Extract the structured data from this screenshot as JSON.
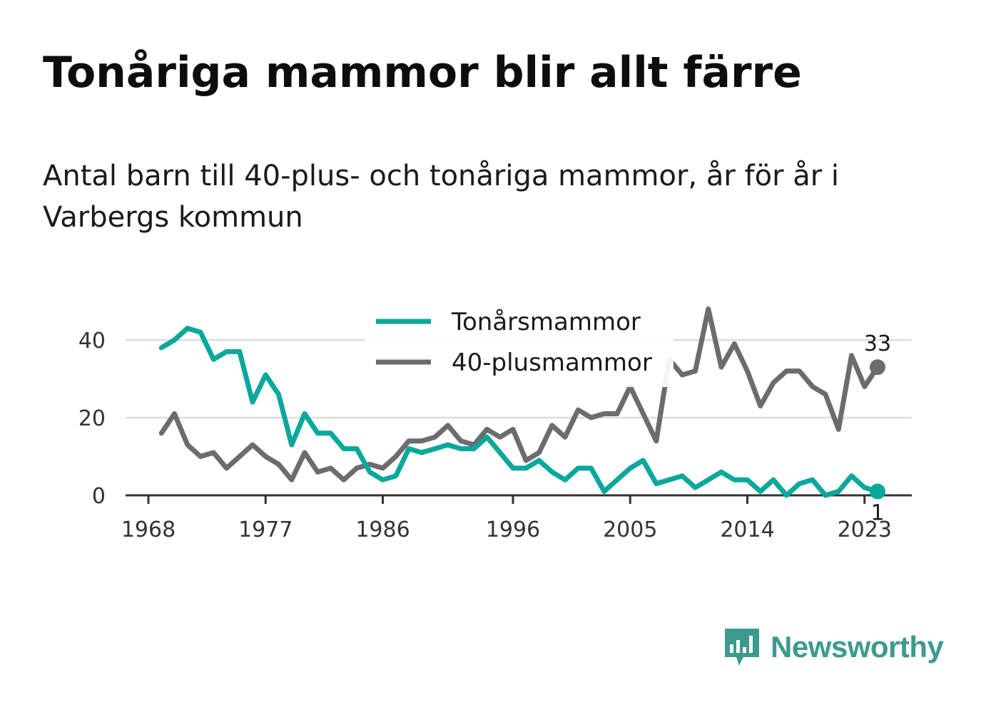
{
  "title": "Tonåriga mammor blir allt färre",
  "subtitle": "Antal barn till 40-plus- och tonåriga mammor, år för år i Varbergs kommun",
  "logo": {
    "text": "Newsworthy",
    "color": "#3d9a8e"
  },
  "chart_data": {
    "type": "line",
    "x": [
      1969,
      1970,
      1971,
      1972,
      1973,
      1974,
      1975,
      1976,
      1977,
      1978,
      1979,
      1980,
      1981,
      1982,
      1983,
      1984,
      1985,
      1986,
      1987,
      1988,
      1989,
      1990,
      1991,
      1992,
      1993,
      1994,
      1995,
      1996,
      1997,
      1998,
      1999,
      2000,
      2001,
      2002,
      2003,
      2004,
      2005,
      2006,
      2007,
      2008,
      2009,
      2010,
      2011,
      2012,
      2013,
      2014,
      2015,
      2016,
      2017,
      2018,
      2019,
      2020,
      2021,
      2022,
      2023,
      2024
    ],
    "series": [
      {
        "name": "Tonårsmammor",
        "color": "#0aa89a",
        "values": [
          38,
          40,
          43,
          42,
          35,
          37,
          37,
          24,
          31,
          26,
          13,
          21,
          16,
          16,
          12,
          12,
          6,
          4,
          5,
          12,
          11,
          12,
          13,
          12,
          12,
          15,
          11,
          7,
          7,
          9,
          6,
          4,
          7,
          7,
          1,
          4,
          7,
          9,
          3,
          4,
          5,
          2,
          4,
          6,
          4,
          4,
          1,
          4,
          0,
          3,
          4,
          0,
          1,
          5,
          2,
          1
        ]
      },
      {
        "name": "40-plusmammor",
        "color": "#6c6b70",
        "values": [
          16,
          21,
          13,
          10,
          11,
          7,
          10,
          13,
          10,
          8,
          4,
          11,
          6,
          7,
          4,
          7,
          8,
          7,
          10,
          14,
          14,
          15,
          18,
          14,
          13,
          17,
          15,
          17,
          9,
          11,
          18,
          15,
          22,
          20,
          21,
          21,
          28,
          21,
          14,
          35,
          31,
          32,
          48,
          33,
          39,
          32,
          23,
          29,
          32,
          32,
          28,
          26,
          17,
          36,
          28,
          33
        ]
      }
    ],
    "xticks": [
      "1968",
      "1977",
      "1986",
      "1996",
      "2005",
      "2014",
      "2023"
    ],
    "yticks": [
      "0",
      "20",
      "40"
    ],
    "ylim": [
      0,
      50
    ],
    "end_labels": {
      "Tonårsmammor": "1",
      "40-plusmammor": "33"
    },
    "grid": true,
    "legend_position": "top-center"
  }
}
